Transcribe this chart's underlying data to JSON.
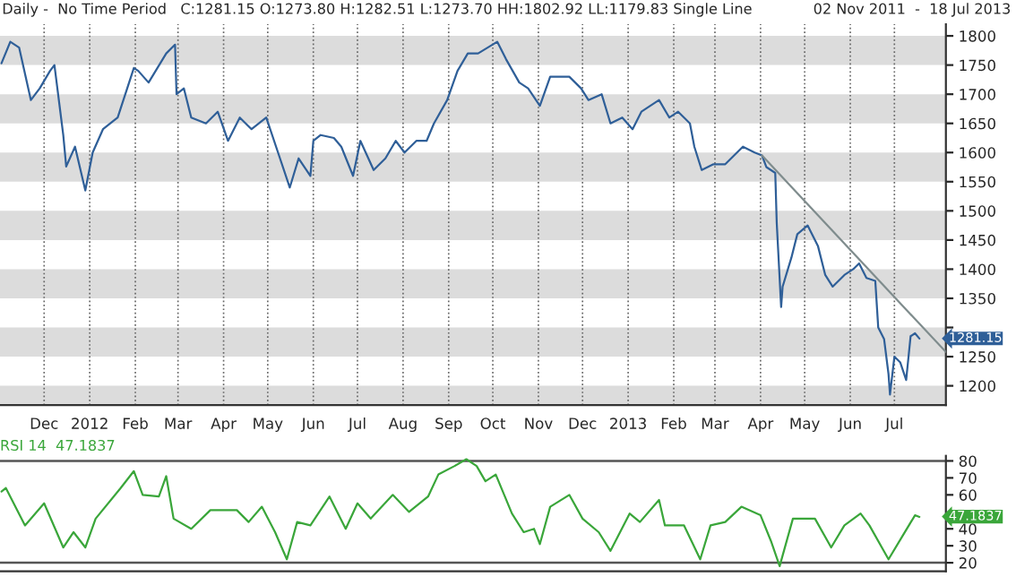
{
  "chart_data": [
    {
      "type": "line",
      "title": "Daily -  No Time Period   C:1281.15 O:1273.80 H:1282.51 L:1273.70 HH:1802.92 LL:1179.83 Single Line",
      "subtitle": "02 Nov 2011  -  18 Jul 2013",
      "xlim": [
        "2011-11-01",
        "2013-08-05"
      ],
      "ylim": [
        1167,
        1820
      ],
      "xticks": [
        {
          "value": "2011-12-01",
          "label": "Dec"
        },
        {
          "value": "2012-01-01",
          "label": "2012"
        },
        {
          "value": "2012-02-01",
          "label": "Feb"
        },
        {
          "value": "2012-03-01",
          "label": "Mar"
        },
        {
          "value": "2012-04-01",
          "label": "Apr"
        },
        {
          "value": "2012-05-01",
          "label": "May"
        },
        {
          "value": "2012-06-01",
          "label": "Jun"
        },
        {
          "value": "2012-07-01",
          "label": "Jul"
        },
        {
          "value": "2012-08-01",
          "label": "Aug"
        },
        {
          "value": "2012-09-01",
          "label": "Sep"
        },
        {
          "value": "2012-10-01",
          "label": "Oct"
        },
        {
          "value": "2012-11-01",
          "label": "Nov"
        },
        {
          "value": "2012-12-01",
          "label": "Dec"
        },
        {
          "value": "2013-01-01",
          "label": "2013"
        },
        {
          "value": "2013-02-01",
          "label": "Feb"
        },
        {
          "value": "2013-03-01",
          "label": "Mar"
        },
        {
          "value": "2013-04-01",
          "label": "Apr"
        },
        {
          "value": "2013-05-01",
          "label": "May"
        },
        {
          "value": "2013-06-01",
          "label": "Jun"
        },
        {
          "value": "2013-07-01",
          "label": "Jul"
        }
      ],
      "yticks": [
        1200,
        1250,
        {
          "value": 1300,
          "label": null
        },
        1350,
        1400,
        1450,
        1500,
        1550,
        1600,
        1650,
        1700,
        1750,
        1800
      ],
      "grid": "x",
      "bands": [
        {
          "axis": "y",
          "from": 1750,
          "to": 1800,
          "color": "#dcdcdc"
        },
        {
          "axis": "y",
          "from": 1650,
          "to": 1700,
          "color": "#dcdcdc"
        },
        {
          "axis": "y",
          "from": 1550,
          "to": 1600,
          "color": "#dcdcdc"
        },
        {
          "axis": "y",
          "from": 1450,
          "to": 1500,
          "color": "#dcdcdc"
        },
        {
          "axis": "y",
          "from": 1350,
          "to": 1400,
          "color": "#dcdcdc"
        },
        {
          "axis": "y",
          "from": 1250,
          "to": 1300,
          "color": "#dcdcdc"
        },
        {
          "axis": "y",
          "from": 1167,
          "to": 1200,
          "color": "#dcdcdc"
        }
      ],
      "annotations": [
        {
          "text": "1281.15",
          "x": "2013-07-18",
          "y": 1281.15
        }
      ],
      "series": [
        {
          "color": "#2f5f98",
          "x": [
            "2011-11-02",
            "2011-11-08",
            "2011-11-14",
            "2011-11-22",
            "2011-11-28",
            "2011-12-05",
            "2011-12-08",
            "2011-12-14",
            "2011-12-16",
            "2011-12-22",
            "2011-12-29",
            "2012-01-03",
            "2012-01-10",
            "2012-01-20",
            "2012-01-31",
            "2012-02-03",
            "2012-02-10",
            "2012-02-22",
            "2012-02-28",
            "2012-02-29",
            "2012-03-05",
            "2012-03-10",
            "2012-03-20",
            "2012-03-28",
            "2012-04-04",
            "2012-04-12",
            "2012-04-20",
            "2012-04-30",
            "2012-05-08",
            "2012-05-16",
            "2012-05-22",
            "2012-05-30",
            "2012-06-01",
            "2012-06-06",
            "2012-06-15",
            "2012-06-20",
            "2012-06-28",
            "2012-07-03",
            "2012-07-12",
            "2012-07-20",
            "2012-07-27",
            "2012-08-02",
            "2012-08-10",
            "2012-08-17",
            "2012-08-22",
            "2012-08-31",
            "2012-09-07",
            "2012-09-14",
            "2012-09-21",
            "2012-10-04",
            "2012-10-10",
            "2012-10-19",
            "2012-10-25",
            "2012-11-02",
            "2012-11-09",
            "2012-11-22",
            "2012-11-30",
            "2012-12-05",
            "2012-12-14",
            "2012-12-20",
            "2012-12-28",
            "2013-01-04",
            "2013-01-10",
            "2013-01-22",
            "2013-01-29",
            "2013-02-04",
            "2013-02-12",
            "2013-02-15",
            "2013-02-20",
            "2013-02-28",
            "2013-03-08",
            "2013-03-20",
            "2013-03-28",
            "2013-04-02",
            "2013-04-05",
            "2013-04-11",
            "2013-04-12",
            "2013-04-15",
            "2013-04-16",
            "2013-04-22",
            "2013-04-26",
            "2013-05-03",
            "2013-05-10",
            "2013-05-15",
            "2013-05-20",
            "2013-05-28",
            "2013-06-03",
            "2013-06-07",
            "2013-06-12",
            "2013-06-18",
            "2013-06-20",
            "2013-06-24",
            "2013-06-27",
            "2013-06-28",
            "2013-07-01",
            "2013-07-05",
            "2013-07-09",
            "2013-07-12",
            "2013-07-15",
            "2013-07-18"
          ],
          "values": [
            1753,
            1790,
            1780,
            1690,
            1710,
            1740,
            1750,
            1630,
            1576,
            1610,
            1535,
            1600,
            1640,
            1660,
            1745,
            1740,
            1720,
            1770,
            1785,
            1700,
            1710,
            1660,
            1650,
            1670,
            1620,
            1660,
            1640,
            1660,
            1600,
            1540,
            1590,
            1560,
            1620,
            1630,
            1625,
            1610,
            1560,
            1620,
            1570,
            1590,
            1620,
            1600,
            1620,
            1620,
            1650,
            1690,
            1740,
            1770,
            1770,
            1790,
            1760,
            1720,
            1710,
            1680,
            1730,
            1730,
            1710,
            1690,
            1700,
            1650,
            1660,
            1640,
            1670,
            1690,
            1660,
            1670,
            1650,
            1610,
            1570,
            1580,
            1580,
            1610,
            1600,
            1595,
            1575,
            1565,
            1480,
            1335,
            1370,
            1420,
            1460,
            1475,
            1440,
            1390,
            1370,
            1390,
            1400,
            1410,
            1385,
            1380,
            1300,
            1280,
            1220,
            1185,
            1250,
            1240,
            1210,
            1285,
            1290,
            1281
          ]
        },
        {
          "color": "#7f8c8d",
          "x": [
            "2013-04-02",
            "2013-08-05"
          ],
          "values": [
            1595,
            1258
          ]
        }
      ]
    },
    {
      "type": "line",
      "title": "RSI 14  47.1837",
      "xlim": [
        "2011-11-01",
        "2013-08-05"
      ],
      "ylim": [
        15,
        83
      ],
      "yticks": [
        20,
        30,
        40,
        60,
        70,
        80
      ],
      "tick_labels": "y",
      "ref_lines": [
        {
          "axis": "y",
          "value": 80,
          "color": "#555555"
        },
        {
          "axis": "y",
          "value": 20,
          "color": "#555555"
        }
      ],
      "annotations": [
        {
          "text": "47.1837",
          "x": "2013-07-18",
          "y": 47.1837
        }
      ],
      "series": [
        {
          "color": "#3aa63a",
          "x": [
            "2011-11-02",
            "2011-11-05",
            "2011-11-18",
            "2011-12-01",
            "2011-12-14",
            "2011-12-21",
            "2011-12-29",
            "2012-01-05",
            "2012-01-22",
            "2012-01-31",
            "2012-02-06",
            "2012-02-17",
            "2012-02-22",
            "2012-02-27",
            "2012-03-10",
            "2012-03-23",
            "2012-04-10",
            "2012-04-18",
            "2012-04-27",
            "2012-05-06",
            "2012-05-14",
            "2012-05-21",
            "2012-05-30",
            "2012-06-12",
            "2012-06-23",
            "2012-07-01",
            "2012-07-10",
            "2012-07-25",
            "2012-08-05",
            "2012-08-18",
            "2012-08-25",
            "2012-09-05",
            "2012-09-13",
            "2012-09-20",
            "2012-09-26",
            "2012-10-03",
            "2012-10-14",
            "2012-10-22",
            "2012-10-29",
            "2012-11-02",
            "2012-11-09",
            "2012-11-22",
            "2012-12-01",
            "2012-12-12",
            "2012-12-20",
            "2013-01-02",
            "2013-01-09",
            "2013-01-22",
            "2013-01-26",
            "2013-02-08",
            "2013-02-19",
            "2013-02-26",
            "2013-03-08",
            "2013-03-19",
            "2013-04-01",
            "2013-04-08",
            "2013-04-14",
            "2013-04-23",
            "2013-05-08",
            "2013-05-19",
            "2013-05-28",
            "2013-06-08",
            "2013-06-14",
            "2013-06-27",
            "2013-07-06",
            "2013-07-15",
            "2013-07-18"
          ],
          "values": [
            62,
            64,
            42,
            55,
            29,
            38,
            29,
            46,
            64,
            74,
            60,
            59,
            71,
            46,
            40,
            51,
            51,
            44,
            53,
            38,
            22,
            44,
            42,
            59,
            40,
            55,
            46,
            60,
            50,
            59,
            72,
            77,
            81,
            77,
            68,
            72,
            49,
            38,
            40,
            31,
            53,
            60,
            46,
            38,
            27,
            49,
            44,
            57,
            42,
            42,
            22,
            42,
            44,
            53,
            48,
            33,
            18,
            46,
            46,
            29,
            42,
            49,
            42,
            22,
            35,
            48,
            47
          ]
        }
      ]
    }
  ]
}
